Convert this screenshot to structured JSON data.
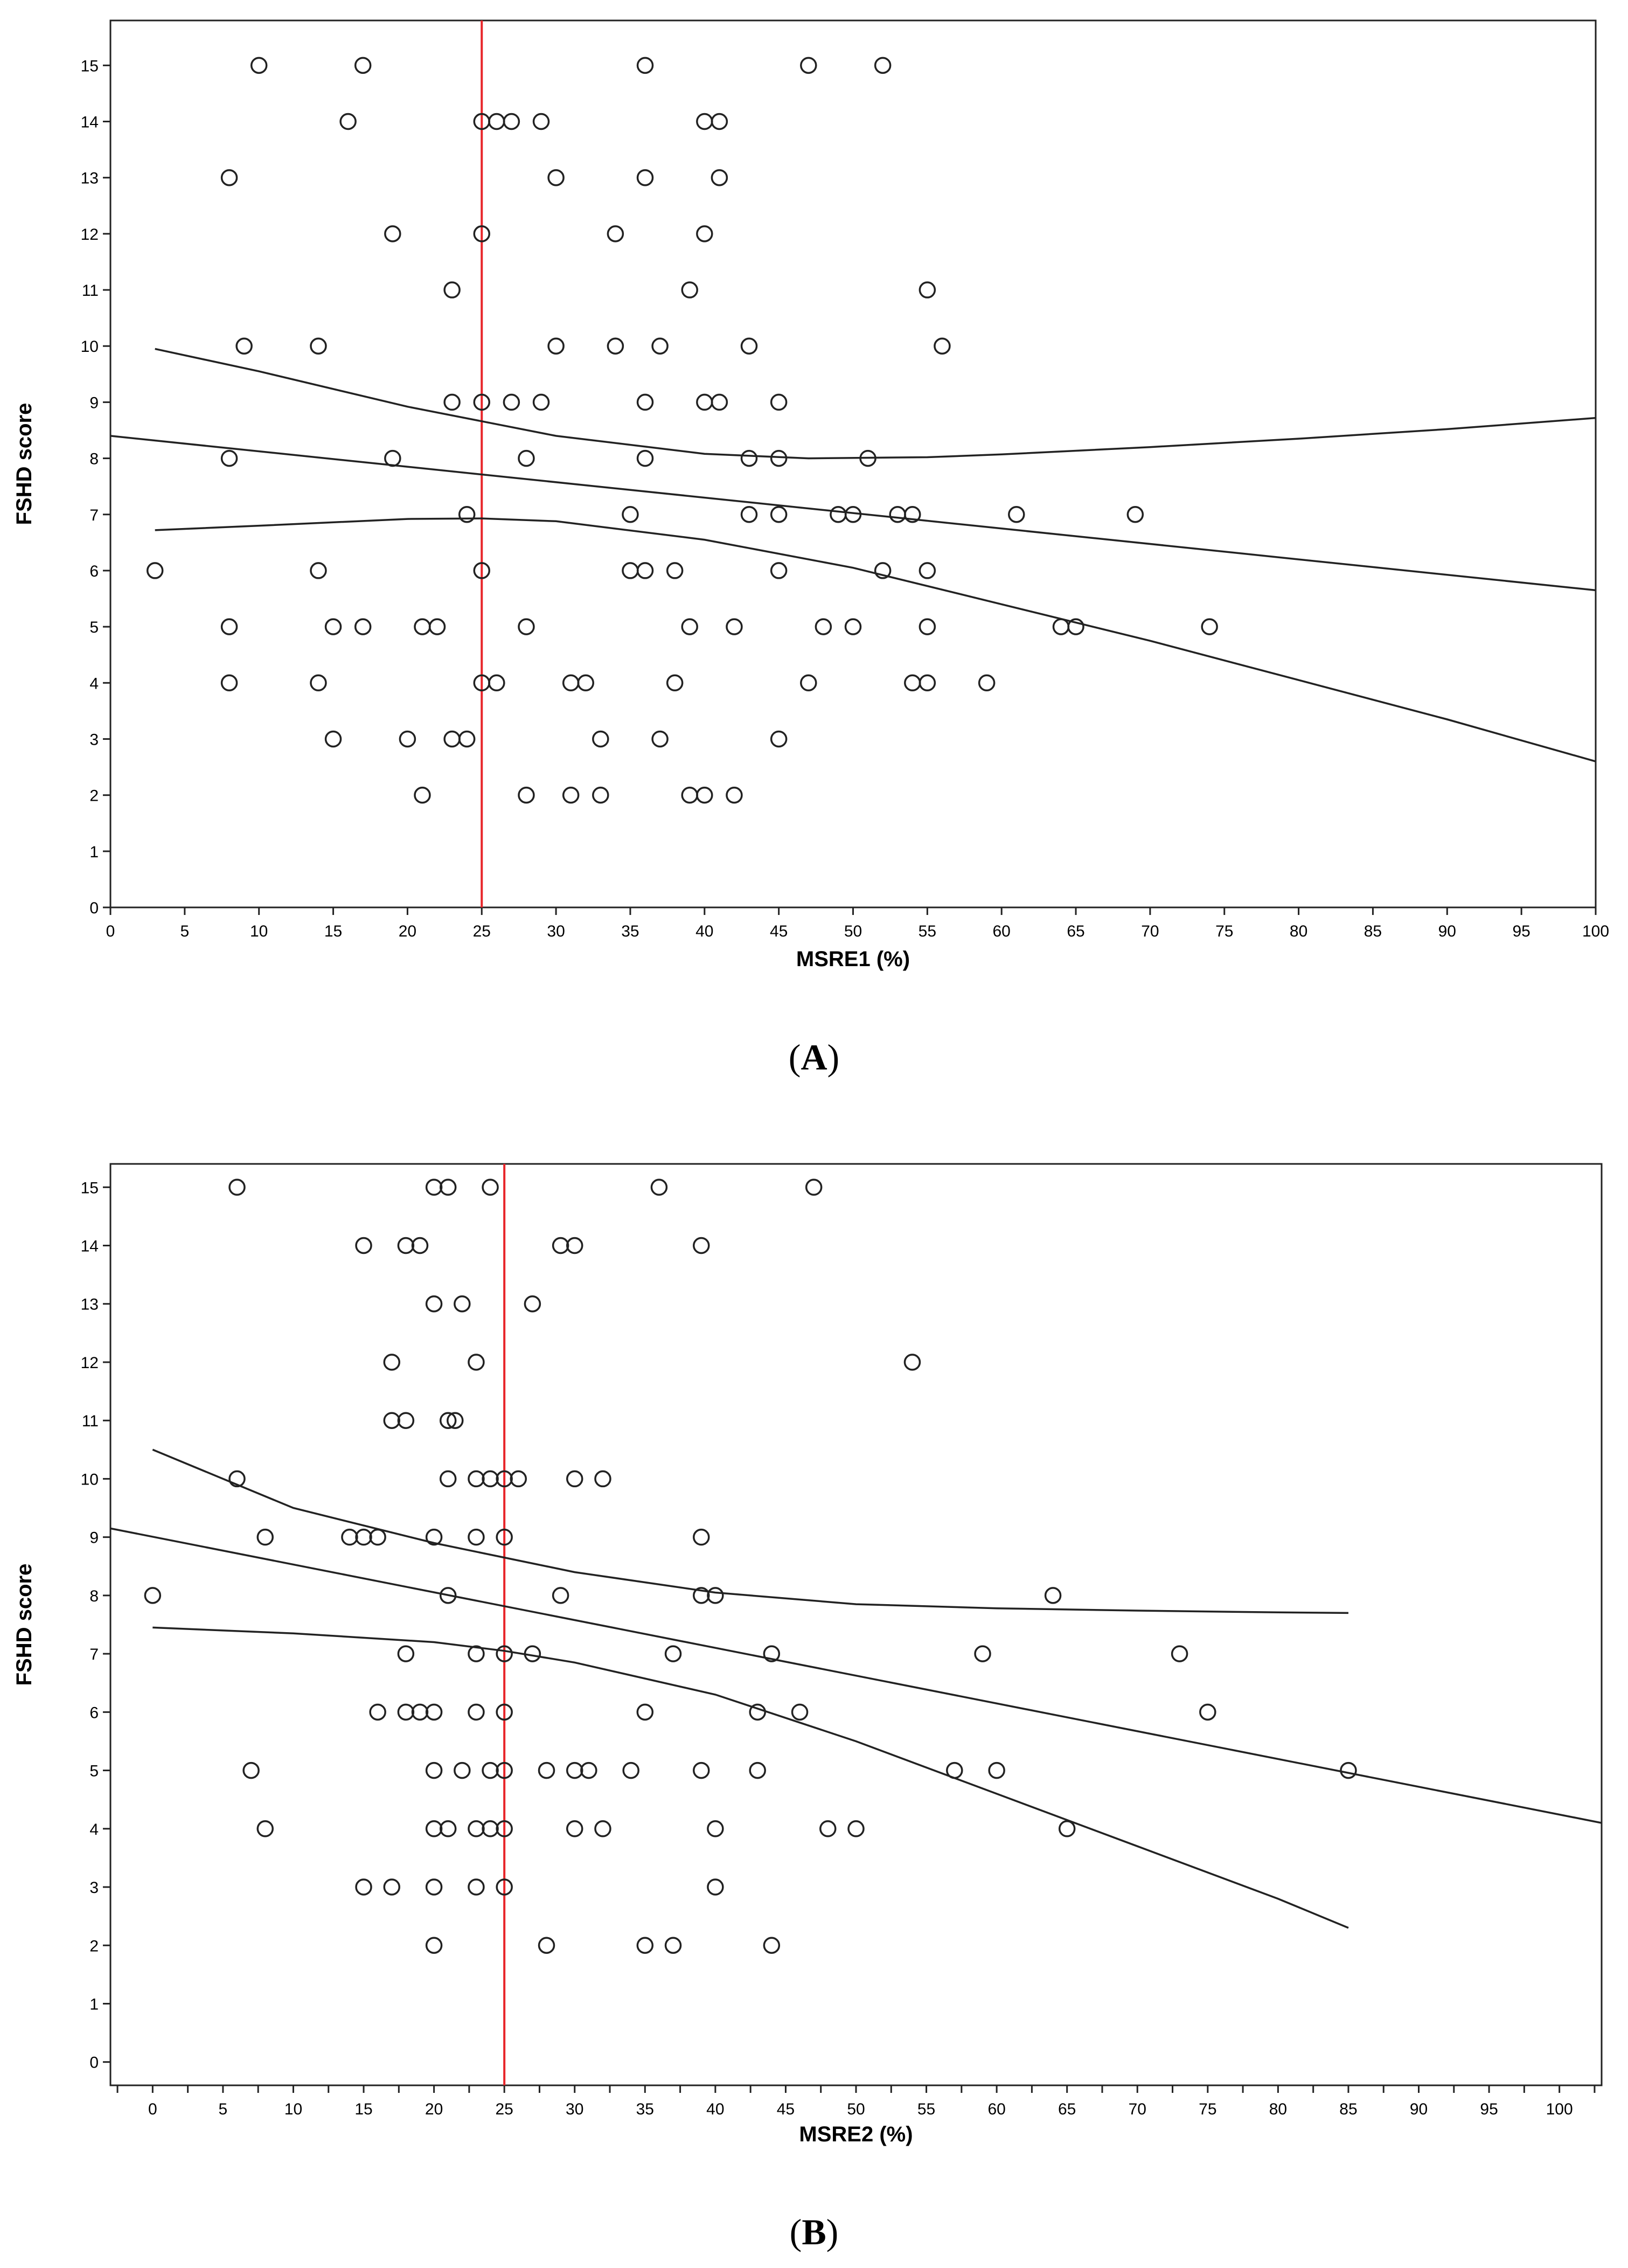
{
  "chart_data": [
    {
      "type": "scatter",
      "panel_label": "A",
      "xlabel": "MSRE1 (%)",
      "ylabel": "FSHD score",
      "xlim": [
        0,
        100
      ],
      "ylim": [
        0,
        15.8
      ],
      "xticks": [
        0,
        5,
        10,
        15,
        20,
        25,
        30,
        35,
        40,
        45,
        50,
        55,
        60,
        65,
        70,
        75,
        80,
        85,
        90,
        95,
        100
      ],
      "yticks": [
        0,
        1,
        2,
        3,
        4,
        5,
        6,
        7,
        8,
        9,
        10,
        11,
        12,
        13,
        14,
        15
      ],
      "reference_line": {
        "x": 25,
        "color": "#e8262a"
      },
      "fit_lines": {
        "x": [
          0,
          100
        ],
        "center": [
          8.4,
          5.65
        ],
        "upper_band": {
          "x": [
            3,
            10,
            20,
            30,
            40,
            47,
            55,
            60,
            70,
            80,
            90,
            100
          ],
          "y": [
            9.95,
            9.55,
            8.92,
            8.4,
            8.08,
            8.0,
            8.02,
            8.07,
            8.2,
            8.35,
            8.52,
            8.72
          ]
        },
        "lower_band": {
          "x": [
            3,
            10,
            20,
            25,
            30,
            40,
            50,
            60,
            70,
            80,
            90,
            100
          ],
          "y": [
            6.72,
            6.8,
            6.92,
            6.93,
            6.88,
            6.55,
            6.05,
            5.4,
            4.75,
            4.05,
            3.35,
            2.6
          ]
        }
      },
      "points": [
        [
          10,
          15
        ],
        [
          17,
          15
        ],
        [
          36,
          15
        ],
        [
          47,
          15
        ],
        [
          52,
          15
        ],
        [
          16,
          14
        ],
        [
          25,
          14
        ],
        [
          26,
          14
        ],
        [
          27,
          14
        ],
        [
          29,
          14
        ],
        [
          40,
          14
        ],
        [
          41,
          14
        ],
        [
          8,
          13
        ],
        [
          30,
          13
        ],
        [
          36,
          13
        ],
        [
          41,
          13
        ],
        [
          19,
          12
        ],
        [
          25,
          12
        ],
        [
          34,
          12
        ],
        [
          40,
          12
        ],
        [
          23,
          11
        ],
        [
          39,
          11
        ],
        [
          55,
          11
        ],
        [
          9,
          10
        ],
        [
          14,
          10
        ],
        [
          30,
          10
        ],
        [
          34,
          10
        ],
        [
          37,
          10
        ],
        [
          43,
          10
        ],
        [
          56,
          10
        ],
        [
          23,
          9
        ],
        [
          25,
          9
        ],
        [
          27,
          9
        ],
        [
          29,
          9
        ],
        [
          36,
          9
        ],
        [
          40,
          9
        ],
        [
          41,
          9
        ],
        [
          45,
          9
        ],
        [
          8,
          8
        ],
        [
          19,
          8
        ],
        [
          28,
          8
        ],
        [
          36,
          8
        ],
        [
          43,
          8
        ],
        [
          45,
          8
        ],
        [
          51,
          8
        ],
        [
          24,
          7
        ],
        [
          35,
          7
        ],
        [
          43,
          7
        ],
        [
          45,
          7
        ],
        [
          49,
          7
        ],
        [
          50,
          7
        ],
        [
          53,
          7
        ],
        [
          54,
          7
        ],
        [
          61,
          7
        ],
        [
          69,
          7
        ],
        [
          3,
          6
        ],
        [
          14,
          6
        ],
        [
          25,
          6
        ],
        [
          35,
          6
        ],
        [
          36,
          6
        ],
        [
          38,
          6
        ],
        [
          45,
          6
        ],
        [
          52,
          6
        ],
        [
          55,
          6
        ],
        [
          8,
          5
        ],
        [
          15,
          5
        ],
        [
          17,
          5
        ],
        [
          21,
          5
        ],
        [
          22,
          5
        ],
        [
          28,
          5
        ],
        [
          39,
          5
        ],
        [
          42,
          5
        ],
        [
          48,
          5
        ],
        [
          50,
          5
        ],
        [
          55,
          5
        ],
        [
          64,
          5
        ],
        [
          65,
          5
        ],
        [
          74,
          5
        ],
        [
          8,
          4
        ],
        [
          14,
          4
        ],
        [
          25,
          4
        ],
        [
          26,
          4
        ],
        [
          31,
          4
        ],
        [
          32,
          4
        ],
        [
          38,
          4
        ],
        [
          47,
          4
        ],
        [
          54,
          4
        ],
        [
          55,
          4
        ],
        [
          59,
          4
        ],
        [
          15,
          3
        ],
        [
          20,
          3
        ],
        [
          23,
          3
        ],
        [
          24,
          3
        ],
        [
          33,
          3
        ],
        [
          37,
          3
        ],
        [
          45,
          3
        ],
        [
          21,
          2
        ],
        [
          28,
          2
        ],
        [
          31,
          2
        ],
        [
          33,
          2
        ],
        [
          39,
          2
        ],
        [
          40,
          2
        ],
        [
          42,
          2
        ]
      ]
    },
    {
      "type": "scatter",
      "panel_label": "B",
      "xlabel": "MSRE2 (%)",
      "ylabel": "FSHD score",
      "xlim": [
        -3,
        103
      ],
      "ylim": [
        -0.4,
        15.4
      ],
      "xticks": [
        0,
        5,
        10,
        15,
        20,
        25,
        30,
        35,
        40,
        45,
        50,
        55,
        60,
        65,
        70,
        75,
        80,
        85,
        90,
        95,
        100
      ],
      "yticks": [
        0,
        1,
        2,
        3,
        4,
        5,
        6,
        7,
        8,
        9,
        10,
        11,
        12,
        13,
        14,
        15
      ],
      "reference_line": {
        "x": 25,
        "color": "#e8262a"
      },
      "fit_lines": {
        "x": [
          -3,
          103
        ],
        "center": [
          9.15,
          4.1
        ],
        "upper_band": {
          "x": [
            0,
            10,
            20,
            30,
            40,
            50,
            60,
            70,
            80,
            85
          ],
          "y": [
            10.5,
            9.5,
            8.9,
            8.4,
            8.05,
            7.85,
            7.78,
            7.74,
            7.71,
            7.7
          ]
        },
        "lower_band": {
          "x": [
            0,
            10,
            20,
            25,
            30,
            40,
            50,
            60,
            70,
            80,
            85
          ],
          "y": [
            7.45,
            7.35,
            7.2,
            7.05,
            6.85,
            6.3,
            5.5,
            4.6,
            3.7,
            2.8,
            2.3
          ]
        }
      },
      "points": [
        [
          6,
          15
        ],
        [
          20,
          15
        ],
        [
          21,
          15
        ],
        [
          24,
          15
        ],
        [
          36,
          15
        ],
        [
          47,
          15
        ],
        [
          15,
          14
        ],
        [
          18,
          14
        ],
        [
          19,
          14
        ],
        [
          29,
          14
        ],
        [
          30,
          14
        ],
        [
          39,
          14
        ],
        [
          20,
          13
        ],
        [
          22,
          13
        ],
        [
          27,
          13
        ],
        [
          17,
          12
        ],
        [
          23,
          12
        ],
        [
          54,
          12
        ],
        [
          17,
          11
        ],
        [
          18,
          11
        ],
        [
          21,
          11
        ],
        [
          21.5,
          11
        ],
        [
          6,
          10
        ],
        [
          21,
          10
        ],
        [
          23,
          10
        ],
        [
          24,
          10
        ],
        [
          25,
          10
        ],
        [
          26,
          10
        ],
        [
          30,
          10
        ],
        [
          32,
          10
        ],
        [
          8,
          9
        ],
        [
          14,
          9
        ],
        [
          15,
          9
        ],
        [
          16,
          9
        ],
        [
          20,
          9
        ],
        [
          23,
          9
        ],
        [
          25,
          9
        ],
        [
          39,
          9
        ],
        [
          0,
          8
        ],
        [
          21,
          8
        ],
        [
          29,
          8
        ],
        [
          39,
          8
        ],
        [
          40,
          8
        ],
        [
          64,
          8
        ],
        [
          18,
          7
        ],
        [
          23,
          7
        ],
        [
          25,
          7
        ],
        [
          27,
          7
        ],
        [
          37,
          7
        ],
        [
          44,
          7
        ],
        [
          59,
          7
        ],
        [
          73,
          7
        ],
        [
          16,
          6
        ],
        [
          18,
          6
        ],
        [
          19,
          6
        ],
        [
          20,
          6
        ],
        [
          23,
          6
        ],
        [
          25,
          6
        ],
        [
          35,
          6
        ],
        [
          43,
          6
        ],
        [
          46,
          6
        ],
        [
          75,
          6
        ],
        [
          7,
          5
        ],
        [
          20,
          5
        ],
        [
          22,
          5
        ],
        [
          24,
          5
        ],
        [
          25,
          5
        ],
        [
          28,
          5
        ],
        [
          30,
          5
        ],
        [
          31,
          5
        ],
        [
          34,
          5
        ],
        [
          39,
          5
        ],
        [
          43,
          5
        ],
        [
          57,
          5
        ],
        [
          60,
          5
        ],
        [
          85,
          5
        ],
        [
          8,
          4
        ],
        [
          20,
          4
        ],
        [
          21,
          4
        ],
        [
          23,
          4
        ],
        [
          24,
          4
        ],
        [
          25,
          4
        ],
        [
          30,
          4
        ],
        [
          32,
          4
        ],
        [
          40,
          4
        ],
        [
          48,
          4
        ],
        [
          50,
          4
        ],
        [
          65,
          4
        ],
        [
          15,
          3
        ],
        [
          17,
          3
        ],
        [
          20,
          3
        ],
        [
          23,
          3
        ],
        [
          25,
          3
        ],
        [
          40,
          3
        ],
        [
          20,
          2
        ],
        [
          28,
          2
        ],
        [
          35,
          2
        ],
        [
          37,
          2
        ],
        [
          44,
          2
        ]
      ]
    }
  ]
}
